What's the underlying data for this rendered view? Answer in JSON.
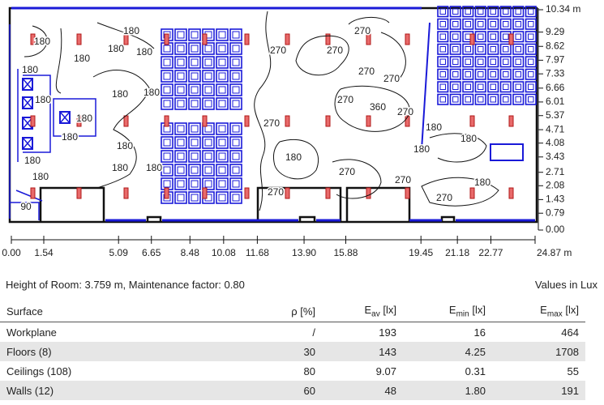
{
  "plan": {
    "x_labels": [
      "0.00",
      "1.54",
      "5.09",
      "6.65",
      "8.48",
      "10.08",
      "11.68",
      "13.90",
      "15.88",
      "19.45",
      "21.18",
      "22.77",
      "24.87 m"
    ],
    "y_labels": [
      "10.34 m",
      "9.29",
      "8.62",
      "7.97",
      "7.33",
      "6.66",
      "6.01",
      "5.37",
      "4.71",
      "4.08",
      "3.43",
      "2.71",
      "2.08",
      "1.43",
      "0.79",
      "0.00"
    ],
    "contour_labels": [
      "180",
      "180",
      "180",
      "180",
      "180",
      "180",
      "180",
      "180",
      "180",
      "180",
      "180",
      "180",
      "180",
      "180",
      "180",
      "180",
      "180",
      "180",
      "180",
      "180",
      "180",
      "270",
      "270",
      "270",
      "270",
      "270",
      "270",
      "270",
      "270",
      "270",
      "270",
      "270",
      "270",
      "360",
      "90"
    ]
  },
  "info": {
    "room": "Height of Room: 3.759 m, Maintenance factor: 0.80",
    "units": "Values in Lux"
  },
  "table": {
    "header": [
      "Surface",
      "ρ [%]",
      {
        "main": "E",
        "sub": "av",
        "unit": "[lx]"
      },
      {
        "main": "E",
        "sub": "min",
        "unit": "[lx]"
      },
      {
        "main": "E",
        "sub": "max",
        "unit": "[lx]"
      }
    ],
    "rows": [
      [
        "Workplane",
        "/",
        "193",
        "16",
        "464"
      ],
      [
        "Floors (8)",
        "30",
        "143",
        "4.25",
        "1708"
      ],
      [
        "Ceilings (108)",
        "80",
        "9.07",
        "0.31",
        "55"
      ],
      [
        "Walls (12)",
        "60",
        "48",
        "1.80",
        "191"
      ]
    ]
  }
}
